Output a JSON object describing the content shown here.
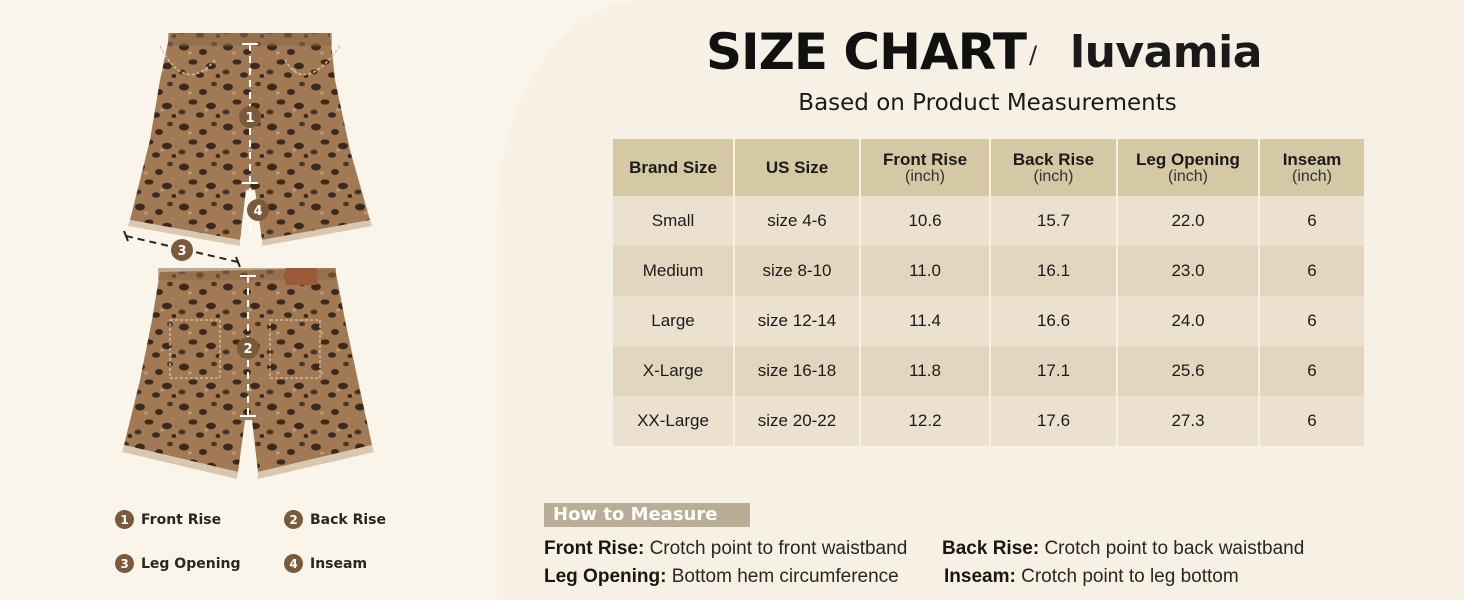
{
  "header": {
    "title": "SIZE CHART",
    "separator": "/",
    "brand": "luvamia",
    "subtitle": "Based on Product Measurements"
  },
  "figure": {
    "front_markers": [
      "1",
      "4"
    ],
    "middle_marker": "3",
    "back_marker": "2",
    "pattern": "leopard print denim shorts",
    "colors": {
      "denim_base": "#a17a55",
      "spot": "#3a2a1e",
      "marker": "#7b5a3c"
    }
  },
  "legend": [
    {
      "num": "1",
      "label": "Front Rise"
    },
    {
      "num": "2",
      "label": "Back Rise"
    },
    {
      "num": "3",
      "label": "Leg Opening"
    },
    {
      "num": "4",
      "label": "Inseam"
    }
  ],
  "table": {
    "headers": [
      {
        "label": "Brand Size",
        "unit": ""
      },
      {
        "label": "US Size",
        "unit": ""
      },
      {
        "label": "Front Rise",
        "unit": "(inch)"
      },
      {
        "label": "Back Rise",
        "unit": "(inch)"
      },
      {
        "label": "Leg Opening",
        "unit": "(inch)"
      },
      {
        "label": "Inseam",
        "unit": "(inch)"
      }
    ],
    "rows": [
      [
        "Small",
        "size 4-6",
        "10.6",
        "15.7",
        "22.0",
        "6"
      ],
      [
        "Medium",
        "size 8-10",
        "11.0",
        "16.1",
        "23.0",
        "6"
      ],
      [
        "Large",
        "size 12-14",
        "11.4",
        "16.6",
        "24.0",
        "6"
      ],
      [
        "X-Large",
        "size 16-18",
        "11.8",
        "17.1",
        "25.6",
        "6"
      ],
      [
        "XX-Large",
        "size 20-22",
        "12.2",
        "17.6",
        "27.3",
        "6"
      ]
    ],
    "colors": {
      "header": "#d4c8a5",
      "row_light": "#ece1cf",
      "row_dark": "#e3d6c0"
    }
  },
  "how_to_measure": {
    "label": "How to Measure",
    "items": [
      {
        "term": "Front Rise:",
        "desc": "Crotch point to front waistband"
      },
      {
        "term": "Back Rise:",
        "desc": "Crotch point to back waistband"
      },
      {
        "term": "Leg Opening:",
        "desc": "Bottom hem circumference"
      },
      {
        "term": "Inseam:",
        "desc": "Crotch point to leg bottom"
      }
    ]
  }
}
